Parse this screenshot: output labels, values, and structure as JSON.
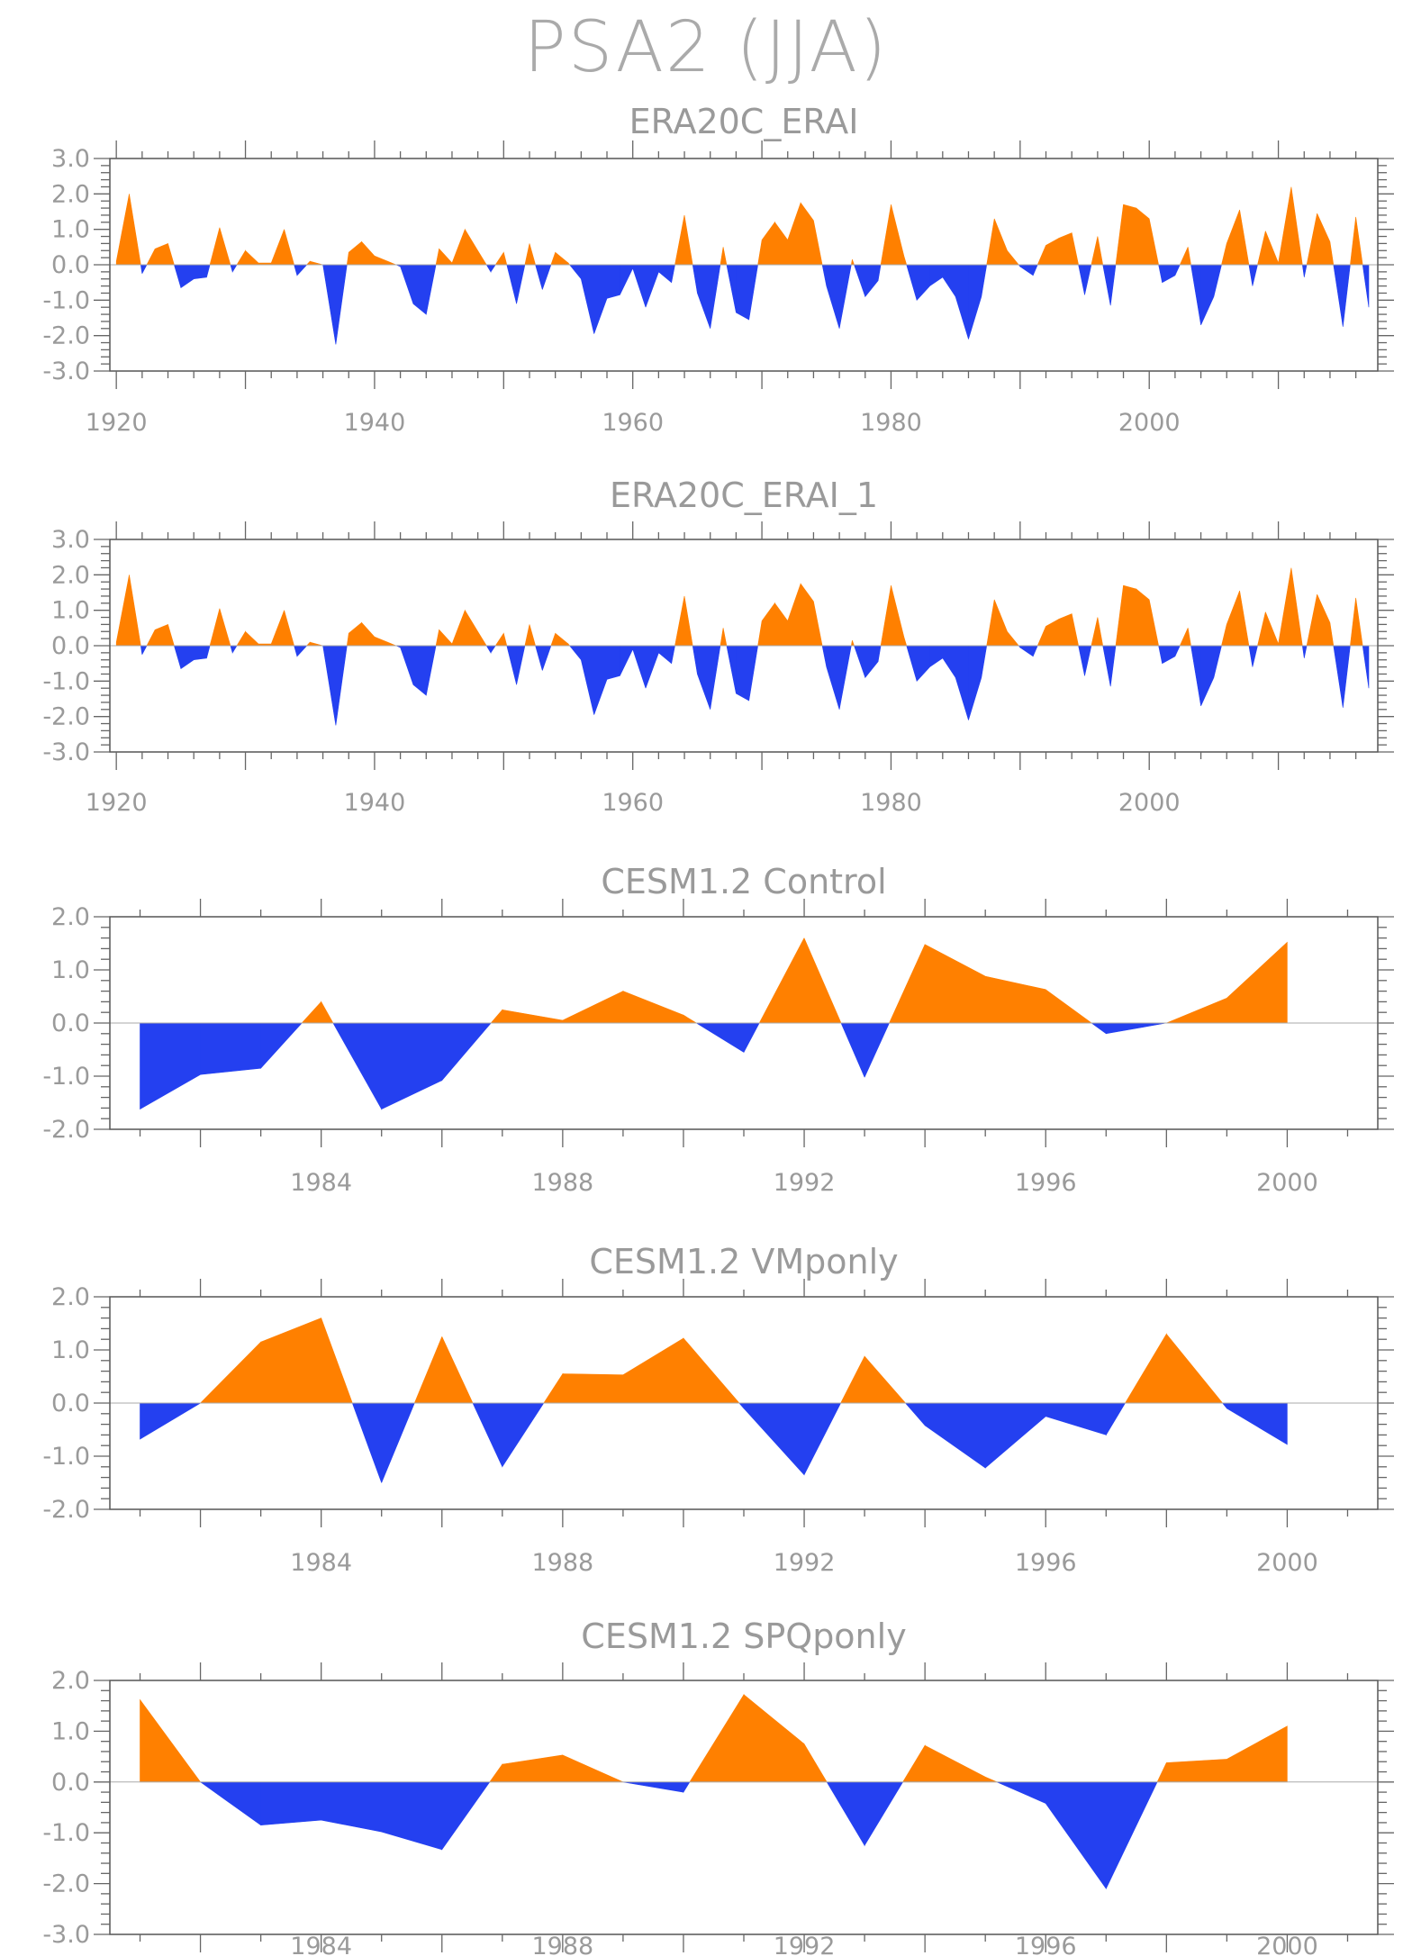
{
  "title": "PSA2 (JJA)",
  "colors": {
    "positive": "#ff8000",
    "negative": "#2440f0",
    "text": "#9a9a9a",
    "frame": "#555555"
  },
  "chart_data": [
    {
      "type": "area",
      "title": "ERA20C_ERAI",
      "xlabel": "",
      "ylabel": "",
      "ylim": [
        -3.0,
        3.0
      ],
      "yticks": [
        "3.0",
        "2.0",
        "1.0",
        "0.0",
        "-1.0",
        "-2.0",
        "-3.0"
      ],
      "xticks": [
        "1920",
        "1940",
        "1960",
        "1980",
        "2000"
      ],
      "xlim": [
        1919.5,
        2017.7
      ],
      "x_start": 1920,
      "values": [
        0.1,
        2.0,
        -0.25,
        0.45,
        0.6,
        -0.65,
        -0.4,
        -0.35,
        1.05,
        -0.2,
        0.4,
        0.05,
        0.05,
        1.0,
        -0.3,
        0.1,
        0.0,
        -2.25,
        0.35,
        0.65,
        0.25,
        0.1,
        -0.05,
        -1.1,
        -1.4,
        0.45,
        0.05,
        1.0,
        0.4,
        -0.2,
        0.35,
        -1.1,
        0.6,
        -0.7,
        0.35,
        0.05,
        -0.4,
        -1.95,
        -0.95,
        -0.85,
        -0.1,
        -1.2,
        -0.2,
        -0.5,
        1.4,
        -0.8,
        -1.8,
        0.5,
        -1.35,
        -1.55,
        0.7,
        1.2,
        0.7,
        1.75,
        1.25,
        -0.6,
        -1.8,
        0.15,
        -0.9,
        -0.45,
        1.7,
        0.25,
        -1.0,
        -0.6,
        -0.35,
        -0.9,
        -2.1,
        -0.9,
        1.3,
        0.4,
        -0.05,
        -0.3,
        0.55,
        0.75,
        0.9,
        -0.85,
        0.8,
        -1.15,
        1.7,
        1.6,
        1.3,
        -0.5,
        -0.3,
        0.5,
        -1.7,
        -0.9,
        0.6,
        1.55,
        -0.6,
        0.95,
        0.05,
        2.2,
        -0.35,
        1.45,
        0.65,
        -1.75,
        1.35,
        -1.2
      ]
    },
    {
      "type": "area",
      "title": "ERA20C_ERAI_1",
      "xlabel": "",
      "ylabel": "",
      "ylim": [
        -3.0,
        3.0
      ],
      "yticks": [
        "3.0",
        "2.0",
        "1.0",
        "0.0",
        "-1.0",
        "-2.0",
        "-3.0"
      ],
      "xticks": [
        "1920",
        "1940",
        "1960",
        "1980",
        "2000"
      ],
      "xlim": [
        1919.5,
        2017.7
      ],
      "x_start": 1920,
      "values": [
        0.1,
        2.0,
        -0.25,
        0.45,
        0.6,
        -0.65,
        -0.4,
        -0.35,
        1.05,
        -0.2,
        0.4,
        0.05,
        0.05,
        1.0,
        -0.3,
        0.1,
        0.0,
        -2.25,
        0.35,
        0.65,
        0.25,
        0.1,
        -0.05,
        -1.1,
        -1.4,
        0.45,
        0.05,
        1.0,
        0.4,
        -0.2,
        0.35,
        -1.1,
        0.6,
        -0.7,
        0.35,
        0.05,
        -0.4,
        -1.95,
        -0.95,
        -0.85,
        -0.1,
        -1.2,
        -0.2,
        -0.5,
        1.4,
        -0.8,
        -1.8,
        0.5,
        -1.35,
        -1.55,
        0.7,
        1.2,
        0.7,
        1.75,
        1.25,
        -0.6,
        -1.8,
        0.15,
        -0.9,
        -0.45,
        1.7,
        0.25,
        -1.0,
        -0.6,
        -0.35,
        -0.9,
        -2.1,
        -0.9,
        1.3,
        0.4,
        -0.05,
        -0.3,
        0.55,
        0.75,
        0.9,
        -0.85,
        0.8,
        -1.15,
        1.7,
        1.6,
        1.3,
        -0.5,
        -0.3,
        0.5,
        -1.7,
        -0.9,
        0.6,
        1.55,
        -0.6,
        0.95,
        0.05,
        2.2,
        -0.35,
        1.45,
        0.65,
        -1.75,
        1.35,
        -1.2
      ]
    },
    {
      "type": "area",
      "title": "CESM1.2 Control",
      "xlabel": "",
      "ylabel": "",
      "ylim": [
        -2.0,
        2.0
      ],
      "yticks": [
        "2.0",
        "1.0",
        "0.0",
        "-1.0",
        "-2.0"
      ],
      "xticks": [
        "1984",
        "1988",
        "1992",
        "1996",
        "2000"
      ],
      "xlim": [
        1980.5,
        2001.5
      ],
      "x_start": 1981,
      "values": [
        -1.62,
        -0.97,
        -0.85,
        0.4,
        -1.62,
        -1.08,
        0.25,
        0.05,
        0.6,
        0.15,
        -0.55,
        1.6,
        -1.02,
        1.48,
        0.88,
        0.63,
        -0.2,
        0.0,
        0.47,
        1.52
      ]
    },
    {
      "type": "area",
      "title": "CESM1.2 VMponly",
      "xlabel": "",
      "ylabel": "",
      "ylim": [
        -2.0,
        2.0
      ],
      "yticks": [
        "2.0",
        "1.0",
        "0.0",
        "-1.0",
        "-2.0"
      ],
      "xticks": [
        "1984",
        "1988",
        "1992",
        "1996",
        "2000"
      ],
      "xlim": [
        1980.5,
        2001.5
      ],
      "x_start": 1981,
      "values": [
        -0.68,
        0.0,
        1.15,
        1.6,
        -1.5,
        1.25,
        -1.2,
        0.55,
        0.53,
        1.22,
        -0.1,
        -1.35,
        0.88,
        -0.42,
        -1.22,
        -0.25,
        -0.6,
        1.3,
        -0.1,
        -0.78
      ]
    },
    {
      "type": "area",
      "title": "CESM1.2 SPQponly",
      "xlabel": "",
      "ylabel": "",
      "ylim": [
        -3.0,
        2.0
      ],
      "yticks": [
        "2.0",
        "1.0",
        "0.0",
        "-1.0",
        "-2.0",
        "-3.0"
      ],
      "xticks": [
        "1984",
        "1988",
        "1992",
        "1996",
        "2000"
      ],
      "xlim": [
        1980.5,
        2001.5
      ],
      "x_start": 1981,
      "values": [
        1.62,
        0.0,
        -0.85,
        -0.75,
        -0.98,
        -1.33,
        0.35,
        0.53,
        0.0,
        -0.2,
        1.72,
        0.75,
        -1.25,
        0.72,
        0.1,
        -0.42,
        -2.1,
        0.38,
        0.45,
        1.1
      ]
    }
  ]
}
